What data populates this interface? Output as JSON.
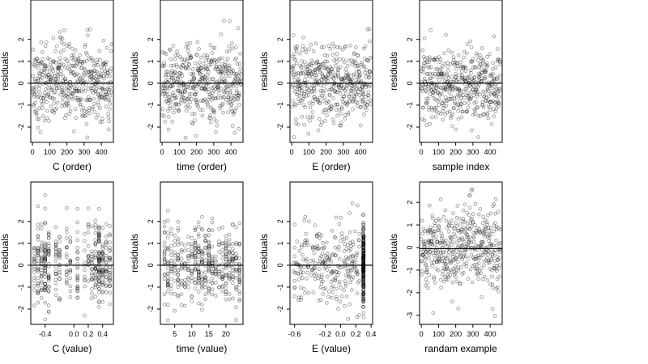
{
  "chart_data": [
    {
      "type": "scatter",
      "xlabel": "C (order)",
      "ylabel": "residuals",
      "x": {
        "kind": "order",
        "n": 460
      },
      "xlim": [
        -10,
        470
      ],
      "xticks": [
        0,
        100,
        200,
        300,
        400
      ],
      "xtick_labels": [
        "0",
        "100",
        "200",
        "300",
        "400"
      ],
      "ylim": [
        -2.7,
        3.8
      ],
      "yticks": [
        -2,
        -1,
        0,
        1,
        2
      ],
      "ytick_labels": [
        "-2",
        "-1",
        "0",
        "1",
        "2"
      ],
      "zero_line": 0,
      "grid": false
    },
    {
      "type": "scatter",
      "xlabel": "time (order)",
      "ylabel": "residuals",
      "x": {
        "kind": "order",
        "n": 460
      },
      "xlim": [
        -10,
        470
      ],
      "xticks": [
        0,
        100,
        200,
        300,
        400
      ],
      "xtick_labels": [
        "0",
        "100",
        "200",
        "300",
        "400"
      ],
      "ylim": [
        -2.7,
        3.8
      ],
      "yticks": [
        -2,
        -1,
        0,
        1,
        2
      ],
      "ytick_labels": [
        "-2",
        "-1",
        "0",
        "1",
        "2"
      ],
      "zero_line": 0,
      "grid": false
    },
    {
      "type": "scatter",
      "xlabel": "E (order)",
      "ylabel": "residuals",
      "x": {
        "kind": "order",
        "n": 460
      },
      "xlim": [
        -10,
        470
      ],
      "xticks": [
        0,
        100,
        200,
        300,
        400
      ],
      "xtick_labels": [
        "0",
        "100",
        "200",
        "300",
        "400"
      ],
      "ylim": [
        -2.7,
        3.8
      ],
      "yticks": [
        -2,
        -1,
        0,
        1,
        2
      ],
      "ytick_labels": [
        "-2",
        "-1",
        "0",
        "1",
        "2"
      ],
      "zero_line": 0,
      "grid": false
    },
    {
      "type": "scatter",
      "xlabel": "sample index",
      "ylabel": "residuals",
      "x": {
        "kind": "order",
        "n": 460
      },
      "xlim": [
        -10,
        470
      ],
      "xticks": [
        0,
        100,
        200,
        300,
        400
      ],
      "xtick_labels": [
        "0",
        "100",
        "200",
        "300",
        "400"
      ],
      "ylim": [
        -2.7,
        3.8
      ],
      "yticks": [
        -2,
        -1,
        0,
        1,
        2
      ],
      "ytick_labels": [
        "-2",
        "-1",
        "0",
        "1",
        "2"
      ],
      "zero_line": 0,
      "grid": false
    },
    {
      "type": "scatter",
      "xlabel": "C (value)",
      "ylabel": "residuals",
      "x": {
        "kind": "levels",
        "values": [
          -0.55,
          -0.5,
          -0.45,
          -0.4,
          -0.35,
          -0.25,
          -0.2,
          -0.1,
          -0.05,
          0.05,
          0.15,
          0.2,
          0.25,
          0.3,
          0.35,
          0.4,
          0.45,
          0.5
        ],
        "weights": [
          2,
          3,
          3,
          5,
          3,
          2,
          3,
          2,
          2,
          2,
          1,
          2,
          2,
          3,
          5,
          3,
          2,
          3
        ]
      },
      "xlim": [
        -0.6,
        0.55
      ],
      "xticks": [
        -0.4,
        0.0,
        0.2,
        0.4
      ],
      "xtick_labels": [
        "-0.4",
        "0.0",
        "0.2",
        "0.4"
      ],
      "ylim": [
        -2.7,
        3.8
      ],
      "yticks": [
        -2,
        -1,
        0,
        1,
        2
      ],
      "ytick_labels": [
        "-2",
        "-1",
        "0",
        "1",
        "2"
      ],
      "zero_line": 0,
      "grid": false
    },
    {
      "type": "scatter",
      "xlabel": "time (value)",
      "ylabel": "residuals",
      "x": {
        "kind": "levels",
        "values": [
          2,
          3,
          4,
          5,
          6,
          7,
          8,
          9,
          10,
          11,
          12,
          13,
          14,
          15,
          16,
          17,
          18,
          19,
          20,
          21,
          22,
          23,
          24
        ],
        "weights": [
          2,
          2,
          2,
          2,
          2,
          2,
          2,
          2,
          2,
          3,
          4,
          3,
          2,
          3,
          3,
          2,
          2,
          2,
          3,
          3,
          2,
          2,
          3
        ]
      },
      "xlim": [
        0.8,
        25
      ],
      "xticks": [
        5,
        10,
        15,
        20
      ],
      "xtick_labels": [
        "5",
        "10",
        "15",
        "20"
      ],
      "ylim": [
        -2.7,
        3.8
      ],
      "yticks": [
        -2,
        -1,
        0,
        1,
        2
      ],
      "ytick_labels": [
        "-2",
        "-1",
        "0",
        "1",
        "2"
      ],
      "zero_line": 0,
      "grid": false
    },
    {
      "type": "scatter",
      "xlabel": "E (value)",
      "ylabel": "residuals",
      "x": {
        "kind": "mixed",
        "spread": [
          -0.62,
          0.25
        ],
        "cluster": 0.3,
        "cluster_share": 0.45
      },
      "xlim": [
        -0.66,
        0.42
      ],
      "xticks": [
        -0.6,
        -0.2,
        0.0,
        0.2,
        0.4
      ],
      "xtick_labels": [
        "-0.6",
        "-0.2",
        "0.0",
        "0.2",
        "0.4"
      ],
      "ylim": [
        -2.7,
        3.8
      ],
      "yticks": [
        -2,
        -1,
        0,
        1,
        2
      ],
      "ytick_labels": [
        "-2",
        "-1",
        "0",
        "1",
        "2"
      ],
      "zero_line": 0,
      "grid": false
    },
    {
      "type": "scatter",
      "xlabel": "randam example",
      "ylabel": "residuals",
      "x": {
        "kind": "order",
        "n": 460
      },
      "xlim": [
        -10,
        470
      ],
      "xticks": [
        0,
        100,
        200,
        300,
        400
      ],
      "xtick_labels": [
        "0",
        "100",
        "200",
        "300",
        "400"
      ],
      "ylim": [
        -3.4,
        2.9
      ],
      "yticks": [
        -3,
        -2,
        -1,
        0,
        1,
        2
      ],
      "ytick_labels": [
        "-3",
        "-2",
        "-1",
        "0",
        "1",
        "2"
      ],
      "zero_line": -0.05,
      "grid": false
    }
  ]
}
